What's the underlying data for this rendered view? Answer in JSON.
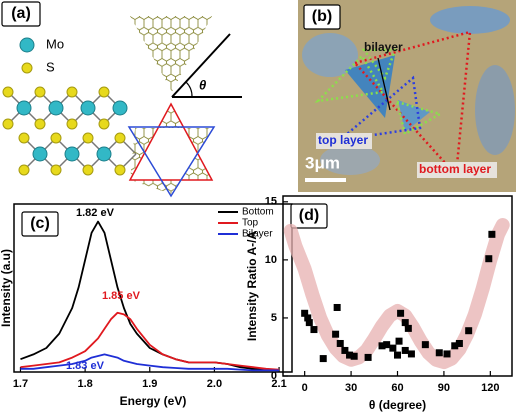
{
  "panels": {
    "a": {
      "label": "(a)",
      "mo": "Mo",
      "s": "S",
      "theta": "θ"
    },
    "b": {
      "label": "(b)",
      "bilayer": "bilayer",
      "top_layer": "top layer",
      "bottom_layer": "bottom layer",
      "scale_bar": "3μm"
    }
  },
  "chart_data": [
    {
      "type": "line",
      "panel_label": "(c)",
      "xlabel": "Energy (eV)",
      "ylabel": "Intensity (a.u)",
      "x": [
        1.7,
        1.72,
        1.74,
        1.76,
        1.78,
        1.79,
        1.8,
        1.81,
        1.82,
        1.83,
        1.84,
        1.85,
        1.86,
        1.87,
        1.88,
        1.9,
        1.92,
        1.94,
        1.96,
        1.98,
        2.0,
        2.02,
        2.04,
        2.06,
        2.08,
        2.1
      ],
      "series": [
        {
          "name": "Bottom",
          "color": "#000000",
          "values": [
            0.08,
            0.11,
            0.15,
            0.24,
            0.4,
            0.53,
            0.7,
            0.87,
            0.94,
            0.87,
            0.7,
            0.53,
            0.4,
            0.3,
            0.24,
            0.15,
            0.11,
            0.08,
            0.06,
            0.06,
            0.06,
            0.05,
            0.03,
            0.02,
            0.015,
            0.01
          ]
        },
        {
          "name": "Top",
          "color": "#e0191f",
          "values": [
            0.03,
            0.04,
            0.05,
            0.06,
            0.09,
            0.11,
            0.13,
            0.17,
            0.21,
            0.27,
            0.33,
            0.37,
            0.36,
            0.33,
            0.27,
            0.17,
            0.11,
            0.08,
            0.06,
            0.06,
            0.06,
            0.05,
            0.04,
            0.03,
            0.02,
            0.015
          ]
        },
        {
          "name": "Bilayer",
          "color": "#1f2fd6",
          "values": [
            0.02,
            0.02,
            0.03,
            0.04,
            0.05,
            0.06,
            0.07,
            0.09,
            0.1,
            0.11,
            0.1,
            0.09,
            0.07,
            0.06,
            0.05,
            0.04,
            0.03,
            0.025,
            0.02,
            0.02,
            0.02,
            0.02,
            0.015,
            0.01,
            0.01,
            0.01
          ]
        }
      ],
      "annotations": [
        {
          "text": "1.82 eV",
          "color": "#000000"
        },
        {
          "text": "1.85 eV",
          "color": "#e0191f"
        },
        {
          "text": "1.83 eV",
          "color": "#1f2fd6"
        }
      ],
      "xlim": [
        1.69,
        2.12
      ],
      "xticks": [
        1.7,
        1.8,
        1.9,
        {
          "value": 2,
          "label": "2.0"
        },
        2.1
      ],
      "ylim": [
        0,
        1.05
      ],
      "legend": "top-right"
    },
    {
      "type": "scatter",
      "panel_label": "(d)",
      "xlabel": "θ (degree)",
      "ylabel": "Intensity Ratio A-/A",
      "x": [
        0,
        2,
        3,
        6,
        12,
        21,
        20,
        23,
        26,
        29,
        32,
        41,
        50,
        53,
        57,
        61,
        62,
        65,
        67,
        65,
        69,
        60,
        78,
        87,
        92,
        97,
        100,
        106,
        119,
        121
      ],
      "values": [
        5.4,
        5.0,
        4.6,
        4.0,
        1.5,
        5.9,
        3.6,
        2.8,
        2.2,
        1.8,
        1.7,
        1.6,
        2.6,
        2.7,
        2.4,
        3.0,
        5.4,
        4.6,
        4.1,
        2.2,
        1.9,
        1.8,
        2.7,
        2.0,
        1.9,
        2.6,
        2.8,
        3.9,
        10.1,
        12.2
      ],
      "color": "#000000",
      "fit": {
        "color": "#e7b0b0",
        "x": [
          -9,
          -6,
          -3,
          0,
          5,
          10,
          15,
          20,
          25,
          30,
          35,
          40,
          45,
          50,
          55,
          60,
          65,
          70,
          75,
          80,
          85,
          90,
          95,
          100,
          105,
          110,
          115,
          120,
          125,
          128
        ],
        "values": [
          12.5,
          11.2,
          10.2,
          9.2,
          7,
          5,
          3.5,
          2.4,
          1.7,
          1.4,
          1.6,
          2.2,
          3.2,
          4.3,
          5.2,
          5.6,
          5.2,
          4.2,
          3,
          2,
          1.4,
          1.2,
          1.5,
          2.3,
          3.6,
          5.3,
          7.5,
          10,
          12.2,
          13
        ]
      },
      "xlim": [
        -14,
        134
      ],
      "xticks": [
        0,
        30,
        60,
        90,
        120
      ],
      "ylim": [
        0,
        15.5
      ],
      "yticks": [
        0,
        5,
        10,
        15
      ]
    }
  ]
}
